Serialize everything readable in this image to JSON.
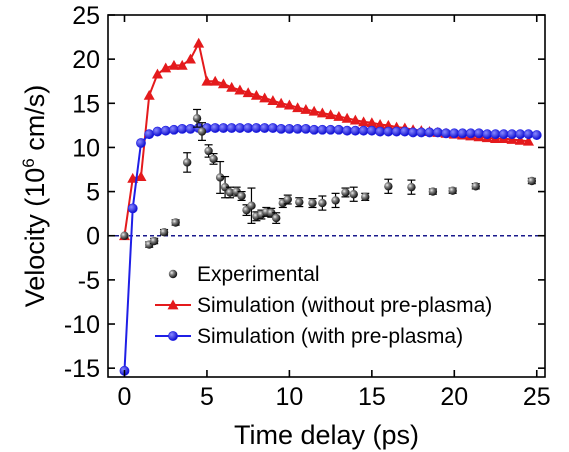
{
  "chart_data": {
    "type": "scatter",
    "xlabel": "Time delay (ps)",
    "ylabel": {
      "prefix": "Velocity (10",
      "superscript": "6",
      "suffix": " cm/s)"
    },
    "xlim": [
      -1,
      25.5
    ],
    "ylim": [
      -16,
      25
    ],
    "xticks": [
      0,
      5,
      10,
      15,
      20,
      25
    ],
    "yticks": [
      -15,
      -10,
      -5,
      0,
      5,
      10,
      15,
      20,
      25
    ],
    "zero_line": {
      "y": 0,
      "style": "dashed",
      "color": "#1a1a8c"
    },
    "legend_position": "lower-center",
    "series": [
      {
        "name": "Experimental",
        "marker": "sphere",
        "color": "#1a1a1a",
        "line": false,
        "x": [
          0,
          1.5,
          1.8,
          2.4,
          3.1,
          3.8,
          4.4,
          4.7,
          5.1,
          5.4,
          5.8,
          6.1,
          6.4,
          6.8,
          7.1,
          7.4,
          7.7,
          8.0,
          8.3,
          8.6,
          8.9,
          9.2,
          9.6,
          9.9,
          10.6,
          11.4,
          12.0,
          12.8,
          13.4,
          13.9,
          14.6,
          16.0,
          17.4,
          18.7,
          19.9,
          21.3,
          24.7
        ],
        "y": [
          0,
          -1.0,
          -0.6,
          0.4,
          1.5,
          8.3,
          13.3,
          11.8,
          9.6,
          8.7,
          6.6,
          5.5,
          4.9,
          5.0,
          4.5,
          2.9,
          3.4,
          2.2,
          2.4,
          2.7,
          2.6,
          2.0,
          3.7,
          4.1,
          3.8,
          3.7,
          3.7,
          4.0,
          4.9,
          4.7,
          4.4,
          5.6,
          5.5,
          5.0,
          5.1,
          5.6,
          6.2
        ],
        "yerr": [
          0,
          0.3,
          0.3,
          0.3,
          0.3,
          1.1,
          1.0,
          1.0,
          0.7,
          0.6,
          1.8,
          1.2,
          0.6,
          0.5,
          0.5,
          0.6,
          2.0,
          0.5,
          0.5,
          0.5,
          0.5,
          0.6,
          0.5,
          0.5,
          0.5,
          0.5,
          0.8,
          0.8,
          0.5,
          0.8,
          0.4,
          0.8,
          0.8,
          0.3,
          0.3,
          0.3,
          0.3
        ]
      },
      {
        "name": "Simulation (without pre-plasma)",
        "marker": "triangle",
        "color": "#e41a1c",
        "line": true,
        "x": [
          0,
          0.5,
          1.0,
          1.5,
          2.0,
          2.5,
          3.0,
          3.5,
          4.0,
          4.5,
          5.0,
          5.5,
          6.0,
          6.5,
          7.0,
          7.5,
          8.0,
          8.5,
          9.0,
          9.5,
          10.0,
          10.5,
          11.0,
          11.5,
          12.0,
          12.5,
          13.0,
          13.5,
          14.0,
          14.5,
          15.0,
          15.5,
          16.0,
          16.5,
          17.0,
          17.5,
          18.0,
          18.5,
          19.0,
          19.5,
          20.0,
          20.5,
          21.0,
          21.5,
          22.0,
          22.5,
          23.0,
          23.5,
          24.0,
          24.5
        ],
        "y": [
          0,
          6.5,
          6.7,
          15.9,
          18.3,
          19.0,
          19.3,
          19.3,
          20.0,
          21.8,
          17.5,
          17.5,
          17.2,
          16.8,
          16.5,
          16.2,
          15.9,
          15.6,
          15.3,
          15.0,
          14.8,
          14.5,
          14.3,
          14.1,
          13.9,
          13.7,
          13.5,
          13.3,
          13.1,
          12.9,
          12.8,
          12.6,
          12.5,
          12.3,
          12.2,
          12.0,
          11.9,
          11.8,
          11.7,
          11.6,
          11.5,
          11.4,
          11.3,
          11.2,
          11.1,
          11.0,
          11.0,
          10.9,
          10.8,
          10.7
        ]
      },
      {
        "name": "Simulation (with pre-plasma)",
        "marker": "circle",
        "color": "#1f1fe6",
        "line": true,
        "x": [
          0,
          0.5,
          1.0,
          1.5,
          2.0,
          2.5,
          3.0,
          3.5,
          4.0,
          4.5,
          5.0,
          5.5,
          6.0,
          6.5,
          7.0,
          7.5,
          8.0,
          8.5,
          9.0,
          9.5,
          10.0,
          10.5,
          11.0,
          11.5,
          12.0,
          12.5,
          13.0,
          13.5,
          14.0,
          14.5,
          15.0,
          15.5,
          16.0,
          16.5,
          17.0,
          17.5,
          18.0,
          18.5,
          19.0,
          19.5,
          20.0,
          20.5,
          21.0,
          21.5,
          22.0,
          22.5,
          23.0,
          23.5,
          24.0,
          24.5,
          25.0
        ],
        "y": [
          -15.3,
          3.1,
          10.5,
          11.5,
          11.8,
          11.9,
          12.0,
          12.1,
          12.1,
          12.2,
          12.2,
          12.2,
          12.2,
          12.2,
          12.2,
          12.2,
          12.2,
          12.2,
          12.2,
          12.1,
          12.1,
          12.1,
          12.1,
          12.0,
          12.0,
          12.0,
          12.0,
          11.9,
          11.9,
          11.9,
          11.9,
          11.8,
          11.8,
          11.8,
          11.8,
          11.7,
          11.7,
          11.7,
          11.7,
          11.6,
          11.6,
          11.6,
          11.6,
          11.6,
          11.5,
          11.5,
          11.5,
          11.5,
          11.5,
          11.5,
          11.4
        ]
      }
    ]
  }
}
